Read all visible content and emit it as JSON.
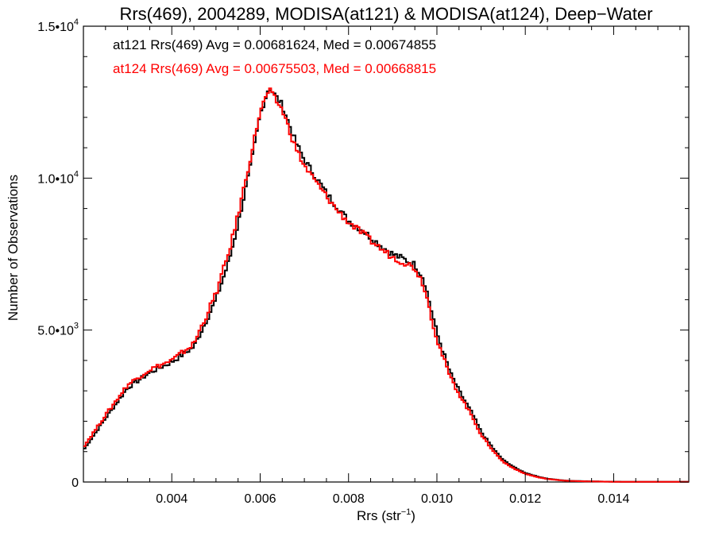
{
  "chart_data": {
    "type": "line",
    "title": "Rrs(469), 2004289, MODISA(at121) & MODISA(at124), Deep−Water",
    "xlabel_main": "Rrs (str",
    "xlabel_sup": "−1",
    "xlabel_end": ")",
    "ylabel": "Number of Observations",
    "xlim": [
      0.002,
      0.0157
    ],
    "ylim": [
      0,
      15000
    ],
    "x_ticks": [
      {
        "value": 0.004,
        "label": "0.004"
      },
      {
        "value": 0.006,
        "label": "0.006"
      },
      {
        "value": 0.008,
        "label": "0.008"
      },
      {
        "value": 0.01,
        "label": "0.010"
      },
      {
        "value": 0.012,
        "label": "0.012"
      },
      {
        "value": 0.014,
        "label": "0.014"
      }
    ],
    "y_ticks": [
      {
        "value": 0,
        "label": "0"
      },
      {
        "value": 5000,
        "label": "5.0•10",
        "sup": "3"
      },
      {
        "value": 10000,
        "label": "1.0•10",
        "sup": "4"
      },
      {
        "value": 15000,
        "label": "1.5•10",
        "sup": "4"
      }
    ],
    "annotations": [
      {
        "text": "at121 Rrs(469) Avg = 0.00681624, Med = 0.00674855",
        "color": "#000000"
      },
      {
        "text": "at124 Rrs(469) Avg = 0.00675503, Med = 0.00668815",
        "color": "#ff0000"
      }
    ],
    "grid": false,
    "series": [
      {
        "name": "at121",
        "color": "#000000",
        "x": [
          0.002,
          0.0025,
          0.003,
          0.0035,
          0.004,
          0.0045,
          0.005,
          0.0053,
          0.0055,
          0.0058,
          0.006,
          0.0062,
          0.0065,
          0.0068,
          0.007,
          0.0073,
          0.0075,
          0.0078,
          0.008,
          0.0083,
          0.0085,
          0.0088,
          0.009,
          0.0093,
          0.0095,
          0.0097,
          0.01,
          0.0103,
          0.0105,
          0.0108,
          0.011,
          0.0113,
          0.0115,
          0.0118,
          0.012,
          0.0123,
          0.0125,
          0.0128,
          0.013,
          0.0135,
          0.014,
          0.015,
          0.0157
        ],
        "y": [
          1050,
          2100,
          3100,
          3600,
          3950,
          4450,
          6000,
          7300,
          8500,
          10500,
          12100,
          13000,
          12400,
          11200,
          10600,
          9950,
          9500,
          8950,
          8600,
          8300,
          8050,
          7700,
          7500,
          7300,
          7150,
          6700,
          4900,
          3600,
          3000,
          2250,
          1650,
          1050,
          720,
          440,
          300,
          170,
          110,
          60,
          40,
          20,
          10,
          5,
          5
        ]
      },
      {
        "name": "at124",
        "color": "#ff0000",
        "x": [
          0.002,
          0.0025,
          0.003,
          0.0035,
          0.004,
          0.0045,
          0.005,
          0.0053,
          0.0055,
          0.0058,
          0.006,
          0.0062,
          0.0065,
          0.0068,
          0.007,
          0.0073,
          0.0075,
          0.0078,
          0.008,
          0.0083,
          0.0085,
          0.0088,
          0.009,
          0.0093,
          0.0095,
          0.0097,
          0.01,
          0.0103,
          0.0105,
          0.0108,
          0.011,
          0.0113,
          0.0115,
          0.0118,
          0.012,
          0.0123,
          0.0125,
          0.0128,
          0.013,
          0.0135,
          0.014,
          0.015,
          0.0157
        ],
        "y": [
          1150,
          2200,
          3200,
          3700,
          4000,
          4550,
          6200,
          7600,
          8800,
          10800,
          12200,
          12900,
          12250,
          11000,
          10400,
          9800,
          9400,
          8850,
          8550,
          8200,
          7950,
          7600,
          7400,
          7200,
          7050,
          6500,
          4700,
          3450,
          2900,
          2150,
          1550,
          980,
          660,
          400,
          270,
          150,
          100,
          55,
          35,
          18,
          8,
          4,
          4
        ]
      }
    ]
  }
}
